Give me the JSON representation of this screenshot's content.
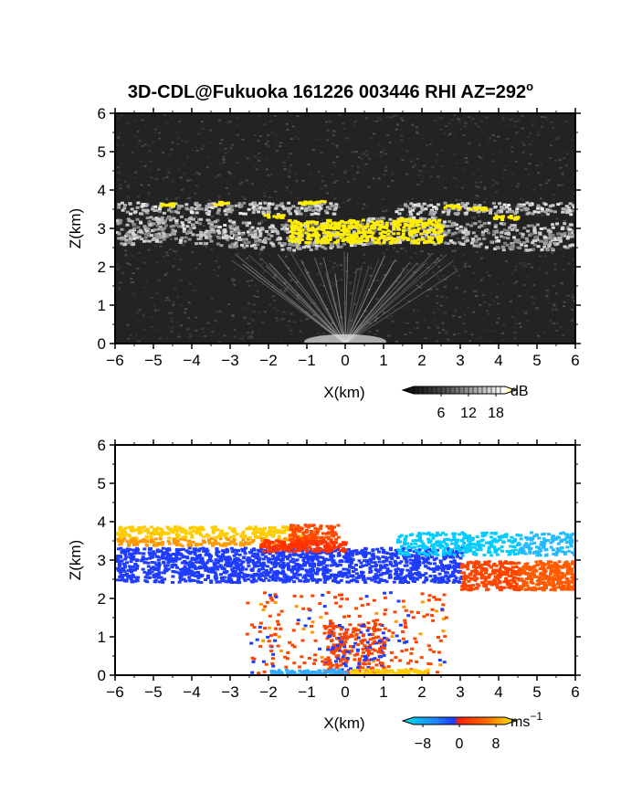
{
  "title_text": "3D-CDL@Fukuoka 161226 003446 RHI AZ=292",
  "title_sup": "o",
  "chart_data": [
    {
      "type": "heatmap",
      "panel": "reflectivity",
      "xlabel": "X(km)",
      "ylabel": "Z(km)",
      "xlim": [
        -6,
        6
      ],
      "ylim": [
        0,
        6
      ],
      "xticks": [
        "-6",
        "-5",
        "-4",
        "-3",
        "-2",
        "-1",
        "0",
        "1",
        "2",
        "3",
        "4",
        "5",
        "6"
      ],
      "yticks": [
        "0",
        "1",
        "2",
        "3",
        "4",
        "5",
        "6"
      ],
      "colorbar": {
        "unit": "dB",
        "ticks": [
          "6",
          "12",
          "18"
        ],
        "range": [
          0,
          20
        ]
      },
      "colors": {
        "background": "#232323",
        "layer": "#b8b8b8",
        "strong": "#ffee00"
      },
      "features": [
        {
          "name": "upper layer",
          "x": [
            -6,
            6
          ],
          "z": [
            3.5,
            3.8
          ]
        },
        {
          "name": "main layer",
          "x": [
            -6,
            6
          ],
          "z": [
            2.5,
            3.3
          ]
        },
        {
          "name": "strong echo",
          "x": [
            -1.5,
            2.5
          ],
          "z": [
            2.6,
            3.3
          ]
        },
        {
          "name": "rays",
          "x": [
            -3,
            3
          ],
          "z": [
            0,
            2.4
          ]
        }
      ]
    },
    {
      "type": "heatmap",
      "panel": "doppler velocity",
      "xlabel": "X(km)",
      "ylabel": "Z(km)",
      "xlim": [
        -6,
        6
      ],
      "ylim": [
        0,
        6
      ],
      "xticks": [
        "-6",
        "-5",
        "-4",
        "-3",
        "-2",
        "-1",
        "0",
        "1",
        "2",
        "3",
        "4",
        "5",
        "6"
      ],
      "yticks": [
        "0",
        "1",
        "2",
        "3",
        "4",
        "5",
        "6"
      ],
      "colorbar": {
        "unit": "ms",
        "unit_sup": "-1",
        "ticks": [
          "-8",
          "0",
          "8"
        ],
        "range": [
          -10,
          10
        ]
      },
      "colors": {
        "negative": "#1f3cff",
        "positive": "#ff4400",
        "high_negative": "#00ccff",
        "high_positive": "#ffcc00"
      },
      "features": [
        {
          "name": "upper layer west",
          "x": [
            -6,
            -1
          ],
          "z": [
            3.4,
            3.9
          ],
          "velocity": 6
        },
        {
          "name": "upper layer east",
          "x": [
            1,
            6
          ],
          "z": [
            3.2,
            3.7
          ],
          "velocity": -5
        },
        {
          "name": "main layer",
          "x": [
            -6,
            3
          ],
          "z": [
            2.4,
            3.5
          ],
          "velocity": -7
        },
        {
          "name": "east layer",
          "x": [
            3,
            6
          ],
          "z": [
            2.2,
            3.0
          ],
          "velocity": 3
        },
        {
          "name": "lower scatter",
          "x": [
            -2.5,
            2.5
          ],
          "z": [
            0,
            2.2
          ],
          "velocity": 2
        }
      ]
    }
  ]
}
